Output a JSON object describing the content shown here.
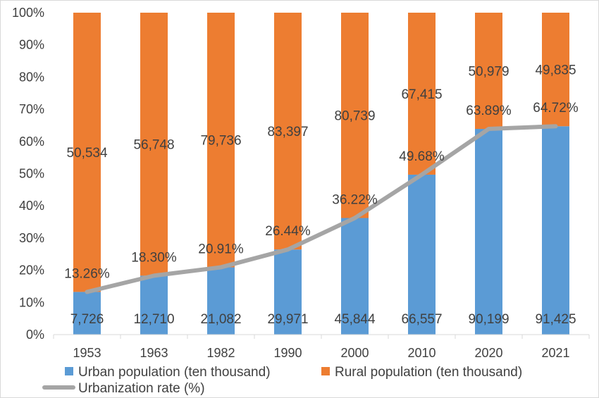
{
  "chart_data": {
    "type": "bar",
    "stacking": "percent",
    "categories": [
      "1953",
      "1963",
      "1982",
      "1990",
      "2000",
      "2010",
      "2020",
      "2021"
    ],
    "series": [
      {
        "name": "Urban population (ten thousand)",
        "type": "bar",
        "color": "#5b9bd5",
        "values": [
          7726,
          12710,
          21082,
          29971,
          45844,
          66557,
          90199,
          91425
        ],
        "labels": [
          "7,726",
          "12,710",
          "21,082",
          "29,971",
          "45,844",
          "66,557",
          "90,199",
          "91,425"
        ]
      },
      {
        "name": "Rural population (ten thousand)",
        "type": "bar",
        "color": "#ed7d31",
        "values": [
          50534,
          56748,
          79736,
          83397,
          80739,
          67415,
          50979,
          49835
        ],
        "labels": [
          "50,534",
          "56,748",
          "79,736",
          "83,397",
          "80,739",
          "67,415",
          "50,979",
          "49,835"
        ]
      },
      {
        "name": "Urbanization rate (%)",
        "type": "line",
        "color": "#a5a5a5",
        "values": [
          13.26,
          18.3,
          20.91,
          26.44,
          36.22,
          49.68,
          63.89,
          64.72
        ],
        "labels": [
          "13.26%",
          "18.30%",
          "20.91%",
          "26.44%",
          "36.22%",
          "49.68%",
          "63.89%",
          "64.72%"
        ]
      }
    ],
    "y_ticks": [
      "0%",
      "10%",
      "20%",
      "30%",
      "40%",
      "50%",
      "60%",
      "70%",
      "80%",
      "90%",
      "100%"
    ],
    "ylim": [
      0,
      100
    ],
    "grid": false,
    "legend": "bottom",
    "title": "",
    "xlabel": "",
    "ylabel": ""
  }
}
